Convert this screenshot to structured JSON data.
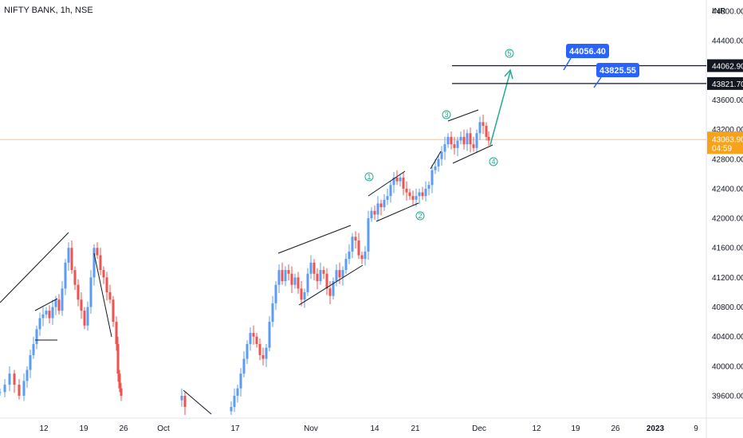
{
  "header": {
    "title": "NIFTY BANK, 1h, NSE"
  },
  "axis": {
    "currency": "INR"
  },
  "colors": {
    "up": "#5b9cf6",
    "down": "#ef5350",
    "current": "#f7a21b",
    "callout": "#2962ff",
    "wave": "#22ab94",
    "arrow": "#22ab94"
  },
  "chart_data": {
    "type": "candlestick",
    "ylim": [
      39300,
      44900
    ],
    "y_ticks": [
      {
        "value": 44800,
        "label": "44800.00"
      },
      {
        "value": 44400,
        "label": "44400.00"
      },
      {
        "value": 43600,
        "label": "43600.00"
      },
      {
        "value": 43200,
        "label": "43200.00"
      },
      {
        "value": 42800,
        "label": "42800.00"
      },
      {
        "value": 42400,
        "label": "42400.00"
      },
      {
        "value": 42000,
        "label": "42000.00"
      },
      {
        "value": 41600,
        "label": "41600.00"
      },
      {
        "value": 41200,
        "label": "41200.00"
      },
      {
        "value": 40800,
        "label": "40800.00"
      },
      {
        "value": 40400,
        "label": "40400.00"
      },
      {
        "value": 40000,
        "label": "40000.00"
      },
      {
        "value": 39600,
        "label": "39600.00"
      }
    ],
    "x_ticks": [
      "12",
      "19",
      "26",
      "Oct",
      "17",
      "Nov",
      "14",
      "21",
      "Dec",
      "12",
      "19",
      "26",
      "2023",
      "9"
    ],
    "price_levels": [
      {
        "value": 44062.9,
        "label": "44062.90",
        "callout": "44056.40"
      },
      {
        "value": 43821.7,
        "label": "43821.70",
        "callout": "43825.55"
      }
    ],
    "current_price": {
      "value": 43063.9,
      "label": "43063.90",
      "countdown": "04:59"
    },
    "wave_labels": [
      "1",
      "2",
      "3",
      "4",
      "5"
    ],
    "candle_close_path": [
      [
        0,
        39650
      ],
      [
        6,
        39750
      ],
      [
        12,
        39900
      ],
      [
        18,
        39750
      ],
      [
        24,
        39600
      ],
      [
        30,
        39800
      ],
      [
        34,
        39950
      ],
      [
        38,
        40150
      ],
      [
        42,
        40300
      ],
      [
        46,
        40500
      ],
      [
        50,
        40650
      ],
      [
        54,
        40700
      ],
      [
        58,
        40750
      ],
      [
        62,
        40650
      ],
      [
        66,
        40800
      ],
      [
        70,
        40900
      ],
      [
        74,
        40750
      ],
      [
        78,
        41050
      ],
      [
        82,
        41400
      ],
      [
        86,
        41600
      ],
      [
        90,
        41300
      ],
      [
        94,
        41100
      ],
      [
        98,
        40900
      ],
      [
        102,
        40750
      ],
      [
        106,
        40550
      ],
      [
        110,
        40800
      ],
      [
        114,
        41200
      ],
      [
        118,
        41600
      ],
      [
        122,
        41500
      ],
      [
        126,
        41300
      ],
      [
        130,
        41200
      ],
      [
        134,
        41000
      ],
      [
        138,
        40900
      ],
      [
        142,
        40600
      ],
      [
        146,
        40300
      ],
      [
        148,
        39900
      ],
      [
        150,
        39700
      ],
      [
        152,
        39600
      ],
      [
        228,
        39600
      ],
      [
        232,
        39450
      ],
      [
        290,
        39450
      ],
      [
        294,
        39600
      ],
      [
        298,
        39700
      ],
      [
        302,
        39900
      ],
      [
        306,
        40100
      ],
      [
        310,
        40300
      ],
      [
        314,
        40450
      ],
      [
        318,
        40400
      ],
      [
        322,
        40300
      ],
      [
        326,
        40150
      ],
      [
        330,
        40100
      ],
      [
        334,
        40250
      ],
      [
        338,
        40600
      ],
      [
        342,
        40850
      ],
      [
        346,
        41100
      ],
      [
        350,
        41300
      ],
      [
        354,
        41150
      ],
      [
        358,
        41300
      ],
      [
        362,
        41250
      ],
      [
        366,
        41100
      ],
      [
        370,
        41200
      ],
      [
        374,
        41050
      ],
      [
        378,
        40900
      ],
      [
        382,
        41000
      ],
      [
        386,
        41250
      ],
      [
        390,
        41400
      ],
      [
        394,
        41250
      ],
      [
        398,
        41150
      ],
      [
        402,
        41300
      ],
      [
        406,
        41250
      ],
      [
        410,
        41050
      ],
      [
        414,
        40950
      ],
      [
        418,
        41150
      ],
      [
        422,
        41300
      ],
      [
        426,
        41200
      ],
      [
        430,
        41300
      ],
      [
        434,
        41450
      ],
      [
        438,
        41550
      ],
      [
        442,
        41750
      ],
      [
        446,
        41700
      ],
      [
        450,
        41500
      ],
      [
        454,
        41450
      ],
      [
        458,
        41550
      ],
      [
        462,
        42000
      ],
      [
        466,
        42100
      ],
      [
        470,
        42050
      ],
      [
        474,
        42200
      ],
      [
        478,
        42150
      ],
      [
        482,
        42250
      ],
      [
        486,
        42300
      ],
      [
        490,
        42450
      ],
      [
        494,
        42550
      ],
      [
        498,
        42500
      ],
      [
        502,
        42550
      ],
      [
        506,
        42400
      ],
      [
        510,
        42350
      ],
      [
        514,
        42300
      ],
      [
        518,
        42250
      ],
      [
        522,
        42300
      ],
      [
        526,
        42350
      ],
      [
        530,
        42300
      ],
      [
        534,
        42400
      ],
      [
        538,
        42450
      ],
      [
        542,
        42650
      ],
      [
        546,
        42700
      ],
      [
        550,
        42800
      ],
      [
        554,
        42900
      ],
      [
        558,
        43000
      ],
      [
        562,
        43100
      ],
      [
        566,
        43000
      ],
      [
        570,
        42950
      ],
      [
        574,
        43050
      ],
      [
        578,
        43100
      ],
      [
        582,
        43000
      ],
      [
        586,
        43150
      ],
      [
        590,
        43000
      ],
      [
        594,
        42950
      ],
      [
        598,
        43150
      ],
      [
        602,
        43300
      ],
      [
        606,
        43250
      ],
      [
        610,
        43100
      ],
      [
        613,
        43050
      ]
    ]
  }
}
